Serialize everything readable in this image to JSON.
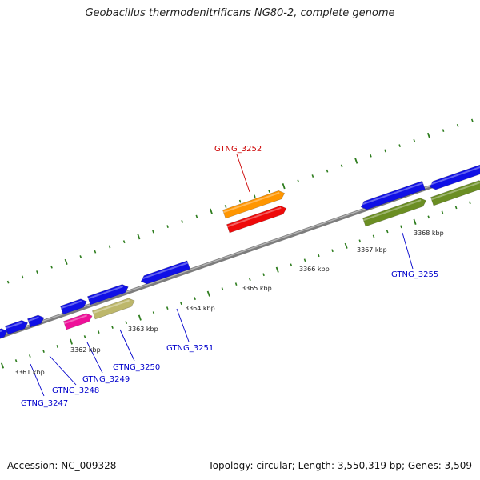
{
  "title": "Geobacillus thermodenitrificans NG80-2, complete genome",
  "accession": "Accession: NC_009328",
  "topology": "Topology: circular; Length: 3,550,319 bp; Genes: 3,509",
  "colors": {
    "backbone": "#8c8c8c",
    "tick": "#2e7d1e",
    "label_blue": "#0000cc",
    "label_red": "#cc0000",
    "gene_blue": "#1010e6",
    "gene_orange": "#ff9600",
    "gene_red": "#ee0a0a",
    "gene_olive": "#6b8e23",
    "gene_khaki": "#bdb76b",
    "gene_magenta": "#ee1199"
  },
  "kbp_labels": [
    "3361 kbp",
    "3362 kbp",
    "3363 kbp",
    "3364 kbp",
    "3365 kbp",
    "3366 kbp",
    "3367 kbp",
    "3368 kbp"
  ],
  "gene_labels": [
    {
      "text": "GTNG_3247",
      "color": "blue"
    },
    {
      "text": "GTNG_3248",
      "color": "blue"
    },
    {
      "text": "GTNG_3249",
      "color": "blue"
    },
    {
      "text": "GTNG_3250",
      "color": "blue"
    },
    {
      "text": "GTNG_3251",
      "color": "blue"
    },
    {
      "text": "GTNG_3252",
      "color": "red"
    },
    {
      "text": "GTNG_3255",
      "color": "blue"
    }
  ]
}
